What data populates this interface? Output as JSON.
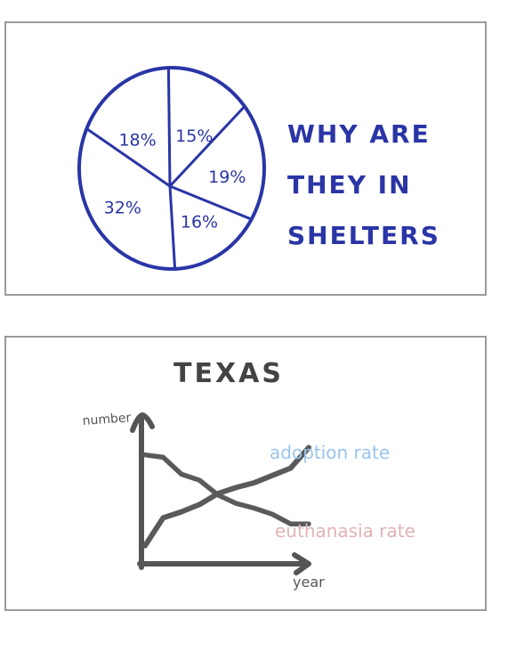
{
  "colors": {
    "pie_ink": "#2a35a6",
    "axis_ink": "#555555",
    "adoption": "#9ac4ec",
    "euthanasia": "#e0b4b6",
    "frame": "#9b9b9b"
  },
  "chart_data": [
    {
      "type": "pie",
      "title_lines": [
        "WHY ARE",
        "THEY IN",
        "SHELTERS"
      ],
      "slices": [
        {
          "label": "15%",
          "value": 15
        },
        {
          "label": "19%",
          "value": 19
        },
        {
          "label": "16%",
          "value": 16
        },
        {
          "label": "32%",
          "value": 32
        },
        {
          "label": "18%",
          "value": 18
        }
      ]
    },
    {
      "type": "line",
      "title": "TEXAS",
      "xlabel": "year",
      "ylabel": "number",
      "grid": false,
      "series": [
        {
          "name": "adoption rate",
          "values": [
            0.12,
            0.35,
            0.4,
            0.46,
            0.55,
            0.6,
            0.64,
            0.7,
            0.76,
            0.93
          ]
        },
        {
          "name": "euthanasia rate",
          "values": [
            0.87,
            0.85,
            0.71,
            0.66,
            0.54,
            0.47,
            0.43,
            0.38,
            0.3,
            0.3
          ]
        }
      ]
    }
  ]
}
